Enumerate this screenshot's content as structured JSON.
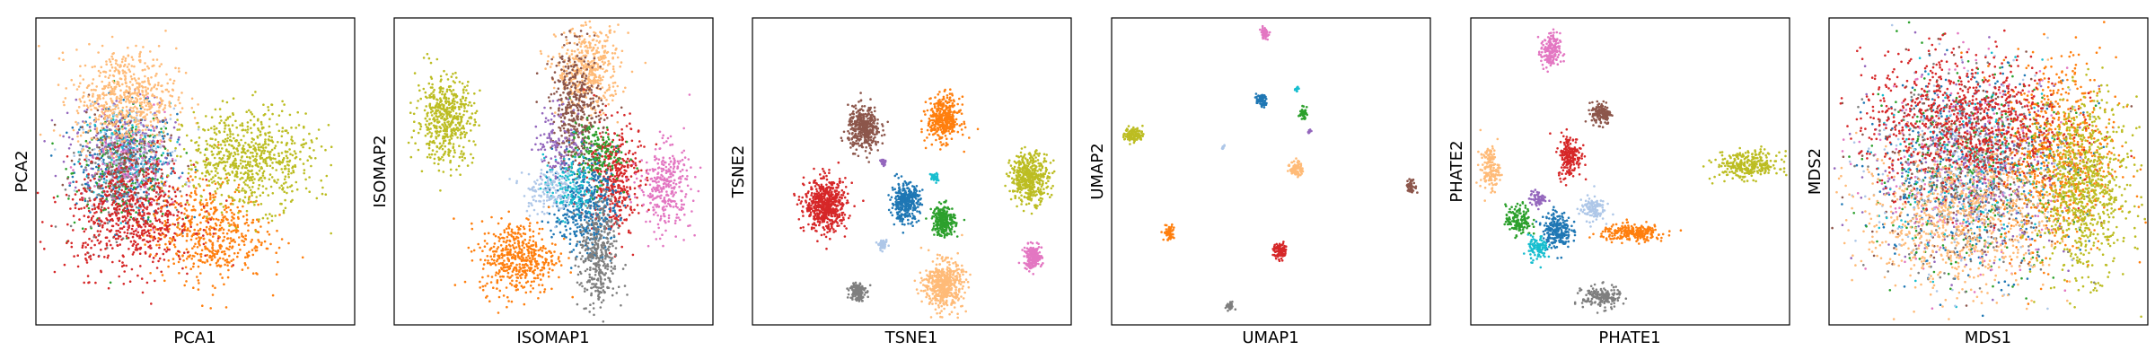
{
  "palette": {
    "blue": "#1f77b4",
    "orange": "#ff7f0e",
    "green": "#2ca02c",
    "red": "#d62728",
    "purple": "#9467bd",
    "brown": "#8c564b",
    "pink": "#e377c2",
    "gray": "#7f7f7f",
    "olive": "#bcbd22",
    "cyan": "#17becf",
    "lightblue": "#aec7e8",
    "peach": "#ffbb78"
  },
  "chart_data": [
    {
      "type": "scatter",
      "xlabel": "PCA1",
      "ylabel": "PCA2",
      "xlim": [
        0,
        100
      ],
      "ylim": [
        0,
        100
      ],
      "ticks": "none",
      "grid": false,
      "series": [
        {
          "color": "blue",
          "cx": 28,
          "cy": 53,
          "sx": 8,
          "sy": 9,
          "n": 320
        },
        {
          "color": "green",
          "cx": 28,
          "cy": 50,
          "sx": 8,
          "sy": 9,
          "n": 220
        },
        {
          "color": "cyan",
          "cx": 28,
          "cy": 56,
          "sx": 7,
          "sy": 8,
          "n": 120
        },
        {
          "color": "purple",
          "cx": 26,
          "cy": 58,
          "sx": 8,
          "sy": 8,
          "n": 200
        },
        {
          "color": "lightblue",
          "cx": 30,
          "cy": 54,
          "sx": 8,
          "sy": 8,
          "n": 160
        },
        {
          "color": "gray",
          "cx": 26,
          "cy": 46,
          "sx": 7,
          "sy": 8,
          "n": 160
        },
        {
          "color": "pink",
          "cx": 29,
          "cy": 51,
          "sx": 7,
          "sy": 8,
          "n": 120
        },
        {
          "color": "brown",
          "cx": 27,
          "cy": 55,
          "sx": 7,
          "sy": 8,
          "n": 140
        },
        {
          "color": "peach",
          "cx": 28,
          "cy": 74,
          "sx": 8,
          "sy": 8,
          "n": 600
        },
        {
          "color": "orange",
          "cx": 54,
          "cy": 30,
          "sx": 9,
          "sy": 8,
          "n": 520
        },
        {
          "color": "red",
          "cx": 30,
          "cy": 35,
          "sx": 10,
          "sy": 9,
          "n": 650
        },
        {
          "color": "olive",
          "cx": 67,
          "cy": 54,
          "sx": 10,
          "sy": 8,
          "n": 700
        }
      ]
    },
    {
      "type": "scatter",
      "xlabel": "ISOMAP1",
      "ylabel": "ISOMAP2",
      "xlim": [
        0,
        100
      ],
      "ylim": [
        0,
        100
      ],
      "ticks": "none",
      "grid": false,
      "series": [
        {
          "color": "olive",
          "cx": 16,
          "cy": 67,
          "sx": 4.5,
          "sy": 7,
          "n": 500
        },
        {
          "color": "peach",
          "cx": 61,
          "cy": 83,
          "sx": 5,
          "sy": 7,
          "n": 450
        },
        {
          "color": "brown",
          "cx": 57,
          "cy": 70,
          "sx": 4,
          "sy": 10,
          "n": 420
        },
        {
          "color": "red",
          "cx": 69,
          "cy": 48,
          "sx": 4,
          "sy": 9,
          "n": 420
        },
        {
          "color": "pink",
          "cx": 85,
          "cy": 45,
          "sx": 4,
          "sy": 7,
          "n": 320
        },
        {
          "color": "blue",
          "cx": 60,
          "cy": 39,
          "sx": 5,
          "sy": 8,
          "n": 420
        },
        {
          "color": "gray",
          "cx": 64,
          "cy": 22,
          "sx": 3,
          "sy": 9,
          "n": 380
        },
        {
          "color": "orange",
          "cx": 39,
          "cy": 22,
          "sx": 6,
          "sy": 6,
          "n": 480
        },
        {
          "color": "green",
          "cx": 63,
          "cy": 56,
          "sx": 4,
          "sy": 5,
          "n": 160
        },
        {
          "color": "cyan",
          "cx": 55,
          "cy": 45,
          "sx": 4,
          "sy": 5,
          "n": 140
        },
        {
          "color": "purple",
          "cx": 52,
          "cy": 60,
          "sx": 4,
          "sy": 6,
          "n": 120
        },
        {
          "color": "lightblue",
          "cx": 48,
          "cy": 44,
          "sx": 4,
          "sy": 4,
          "n": 140
        }
      ]
    },
    {
      "type": "scatter",
      "xlabel": "TSNE1",
      "ylabel": "TSNE2",
      "xlim": [
        0,
        100
      ],
      "ylim": [
        0,
        100
      ],
      "ticks": "none",
      "grid": false,
      "series": [
        {
          "color": "brown",
          "cx": 35,
          "cy": 64,
          "sx": 2.5,
          "sy": 3.5,
          "n": 400
        },
        {
          "color": "orange",
          "cx": 60,
          "cy": 67,
          "sx": 2.5,
          "sy": 3.5,
          "n": 400
        },
        {
          "color": "purple",
          "cx": 41,
          "cy": 53,
          "sx": 0.4,
          "sy": 0.5,
          "n": 25
        },
        {
          "color": "cyan",
          "cx": 57,
          "cy": 48,
          "sx": 0.6,
          "sy": 0.8,
          "n": 40
        },
        {
          "color": "olive",
          "cx": 87,
          "cy": 48,
          "sx": 3,
          "sy": 4,
          "n": 450
        },
        {
          "color": "blue",
          "cx": 48,
          "cy": 40,
          "sx": 2.2,
          "sy": 3,
          "n": 350
        },
        {
          "color": "red",
          "cx": 23,
          "cy": 39,
          "sx": 3.3,
          "sy": 4.2,
          "n": 600
        },
        {
          "color": "green",
          "cx": 60,
          "cy": 34,
          "sx": 1.8,
          "sy": 2.5,
          "n": 250
        },
        {
          "color": "lightblue",
          "cx": 41,
          "cy": 26,
          "sx": 0.7,
          "sy": 0.7,
          "n": 50
        },
        {
          "color": "pink",
          "cx": 88,
          "cy": 22,
          "sx": 1.4,
          "sy": 1.9,
          "n": 180
        },
        {
          "color": "gray",
          "cx": 33,
          "cy": 11,
          "sx": 1.2,
          "sy": 1.6,
          "n": 150
        },
        {
          "color": "peach",
          "cx": 60,
          "cy": 13,
          "sx": 3,
          "sy": 3.8,
          "n": 500
        }
      ]
    },
    {
      "type": "scatter",
      "xlabel": "UMAP1",
      "ylabel": "UMAP2",
      "xlim": [
        0,
        100
      ],
      "ylim": [
        0,
        100
      ],
      "ticks": "none",
      "grid": false,
      "series": [
        {
          "color": "pink",
          "cx": 48,
          "cy": 95,
          "sx": 0.6,
          "sy": 0.9,
          "n": 60
        },
        {
          "color": "blue",
          "cx": 47,
          "cy": 73,
          "sx": 0.8,
          "sy": 1,
          "n": 70
        },
        {
          "color": "cyan",
          "cx": 58,
          "cy": 77,
          "sx": 0.3,
          "sy": 0.4,
          "n": 15
        },
        {
          "color": "green",
          "cx": 60,
          "cy": 69,
          "sx": 0.6,
          "sy": 0.9,
          "n": 40
        },
        {
          "color": "purple",
          "cx": 62,
          "cy": 63,
          "sx": 0.3,
          "sy": 0.3,
          "n": 10
        },
        {
          "color": "olive",
          "cx": 7,
          "cy": 62,
          "sx": 1.4,
          "sy": 1.2,
          "n": 120
        },
        {
          "color": "lightblue",
          "cx": 35,
          "cy": 58,
          "sx": 0.3,
          "sy": 0.4,
          "n": 10
        },
        {
          "color": "peach",
          "cx": 58,
          "cy": 51,
          "sx": 1,
          "sy": 1.3,
          "n": 80
        },
        {
          "color": "brown",
          "cx": 94,
          "cy": 45,
          "sx": 0.8,
          "sy": 1.1,
          "n": 50
        },
        {
          "color": "orange",
          "cx": 18,
          "cy": 30,
          "sx": 0.8,
          "sy": 1.3,
          "n": 60
        },
        {
          "color": "red",
          "cx": 53,
          "cy": 24,
          "sx": 1.1,
          "sy": 1.3,
          "n": 90
        },
        {
          "color": "gray",
          "cx": 37,
          "cy": 6,
          "sx": 0.6,
          "sy": 0.7,
          "n": 40
        }
      ]
    },
    {
      "type": "scatter",
      "xlabel": "PHATE1",
      "ylabel": "PHATE2",
      "xlim": [
        0,
        100
      ],
      "ylim": [
        0,
        100
      ],
      "ticks": "none",
      "grid": false,
      "series": [
        {
          "color": "pink",
          "cx": 25,
          "cy": 89,
          "sx": 1.5,
          "sy": 3,
          "n": 180
        },
        {
          "color": "brown",
          "cx": 41,
          "cy": 69,
          "sx": 1.5,
          "sy": 1.8,
          "n": 150
        },
        {
          "color": "red",
          "cx": 31,
          "cy": 55,
          "sx": 1.8,
          "sy": 3.5,
          "n": 200
        },
        {
          "color": "peach",
          "cx": 6,
          "cy": 51,
          "sx": 1.5,
          "sy": 3.5,
          "n": 150
        },
        {
          "color": "purple",
          "cx": 21,
          "cy": 41,
          "sx": 1.3,
          "sy": 1.3,
          "n": 60
        },
        {
          "color": "lightblue",
          "cx": 38,
          "cy": 38,
          "sx": 2,
          "sy": 2,
          "n": 120
        },
        {
          "color": "green",
          "cx": 15,
          "cy": 34,
          "sx": 2,
          "sy": 2.5,
          "n": 150
        },
        {
          "color": "blue",
          "cx": 27,
          "cy": 31,
          "sx": 2.2,
          "sy": 3,
          "n": 230
        },
        {
          "color": "cyan",
          "cx": 21,
          "cy": 25,
          "sx": 1.5,
          "sy": 2,
          "n": 100
        },
        {
          "color": "orange",
          "cx": 51,
          "cy": 30,
          "sx": 5,
          "sy": 1.3,
          "n": 250
        },
        {
          "color": "olive",
          "cx": 87,
          "cy": 52,
          "sx": 5,
          "sy": 2.2,
          "n": 300
        },
        {
          "color": "gray",
          "cx": 41,
          "cy": 9,
          "sx": 3,
          "sy": 1.8,
          "n": 180
        }
      ]
    },
    {
      "type": "scatter",
      "xlabel": "MDS1",
      "ylabel": "MDS2",
      "xlim": [
        0,
        100
      ],
      "ylim": [
        0,
        100
      ],
      "ticks": "none",
      "grid": false,
      "series": [
        {
          "color": "blue",
          "cx": 45,
          "cy": 50,
          "sx": 16,
          "sy": 16,
          "n": 400
        },
        {
          "color": "green",
          "cx": 45,
          "cy": 50,
          "sx": 16,
          "sy": 16,
          "n": 350
        },
        {
          "color": "purple",
          "cx": 45,
          "cy": 50,
          "sx": 16,
          "sy": 16,
          "n": 300
        },
        {
          "color": "pink",
          "cx": 45,
          "cy": 50,
          "sx": 16,
          "sy": 16,
          "n": 250
        },
        {
          "color": "gray",
          "cx": 45,
          "cy": 47,
          "sx": 16,
          "sy": 16,
          "n": 250
        },
        {
          "color": "cyan",
          "cx": 45,
          "cy": 50,
          "sx": 15,
          "sy": 15,
          "n": 200
        },
        {
          "color": "brown",
          "cx": 42,
          "cy": 52,
          "sx": 16,
          "sy": 16,
          "n": 300
        },
        {
          "color": "lightblue",
          "cx": 45,
          "cy": 50,
          "sx": 16,
          "sy": 16,
          "n": 250
        },
        {
          "color": "peach",
          "cx": 40,
          "cy": 35,
          "sx": 15,
          "sy": 12,
          "n": 800
        },
        {
          "color": "orange",
          "cx": 72,
          "cy": 55,
          "sx": 9,
          "sy": 16,
          "n": 700
        },
        {
          "color": "red",
          "cx": 42,
          "cy": 66,
          "sx": 16,
          "sy": 11,
          "n": 900
        },
        {
          "color": "olive",
          "cx": 80,
          "cy": 45,
          "sx": 7,
          "sy": 14,
          "n": 800
        }
      ]
    }
  ]
}
